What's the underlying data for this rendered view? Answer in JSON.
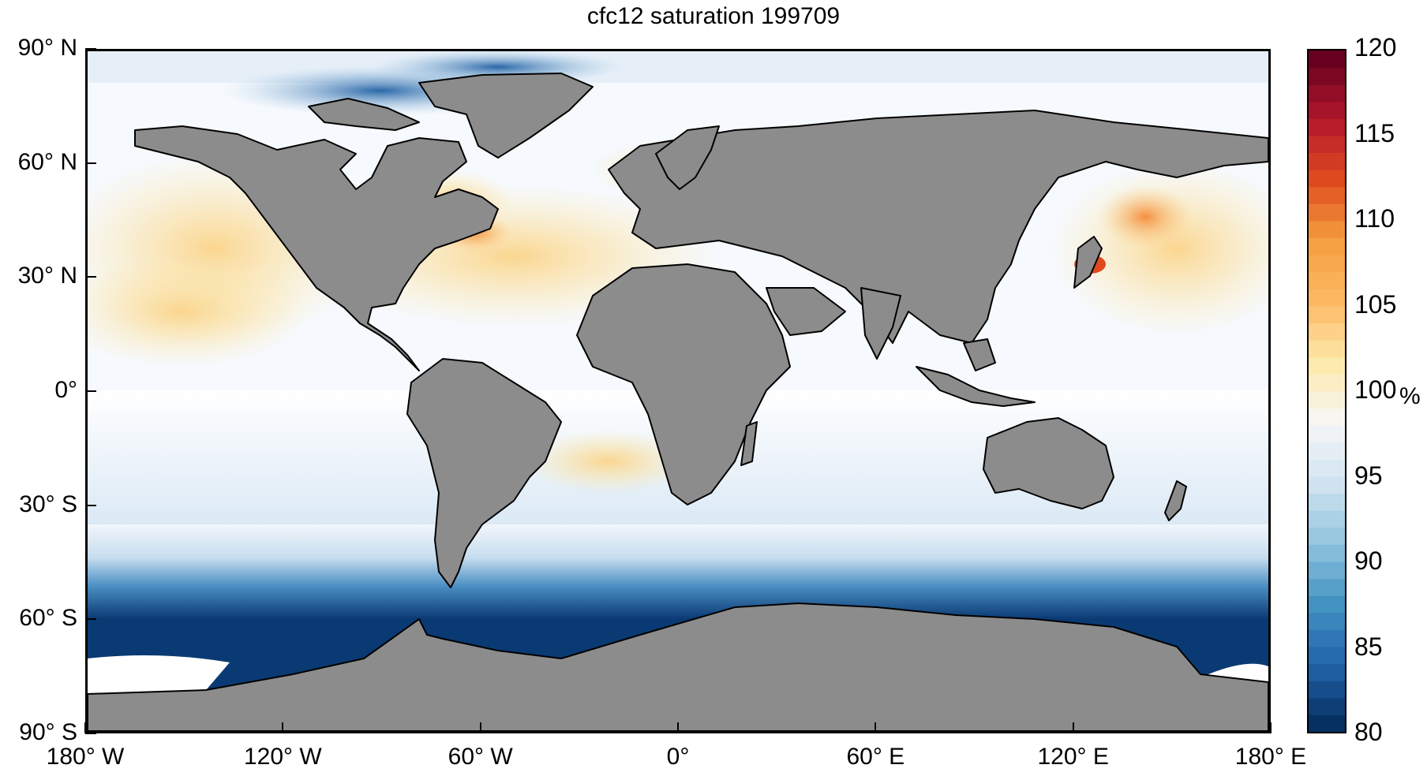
{
  "title": "cfc12 saturation 199709",
  "lat_ticks": [
    {
      "label": "90° N",
      "value": 90
    },
    {
      "label": "60° N",
      "value": 60
    },
    {
      "label": "30° N",
      "value": 30
    },
    {
      "label": "0°",
      "value": 0
    },
    {
      "label": "30° S",
      "value": -30
    },
    {
      "label": "60° S",
      "value": -60
    },
    {
      "label": "90° S",
      "value": -90
    }
  ],
  "lon_ticks": [
    {
      "label": "180° W",
      "value": -180
    },
    {
      "label": "120° W",
      "value": -120
    },
    {
      "label": "60° W",
      "value": -60
    },
    {
      "label": "0°",
      "value": 0
    },
    {
      "label": "60° E",
      "value": 60
    },
    {
      "label": "120° E",
      "value": 120
    },
    {
      "label": "180° E",
      "value": 180
    }
  ],
  "colorbar": {
    "ticks": [
      "120",
      "115",
      "110",
      "105",
      "100",
      "95",
      "90",
      "85",
      "80"
    ],
    "tick_values": [
      120,
      115,
      110,
      105,
      100,
      95,
      90,
      85,
      80
    ],
    "min": 80,
    "max": 120,
    "unit": "%",
    "colormap": [
      "#053061",
      "#2166ac",
      "#4393c3",
      "#92c5de",
      "#d1e5f0",
      "#f7f7f7",
      "#fde9a9",
      "#fdb863",
      "#f4a040",
      "#e04a1f",
      "#b2182b",
      "#67001f"
    ]
  },
  "colors": {
    "land": "#8c8c8c",
    "coast": "#000000",
    "ocean_base": "#f6f9fd"
  }
}
